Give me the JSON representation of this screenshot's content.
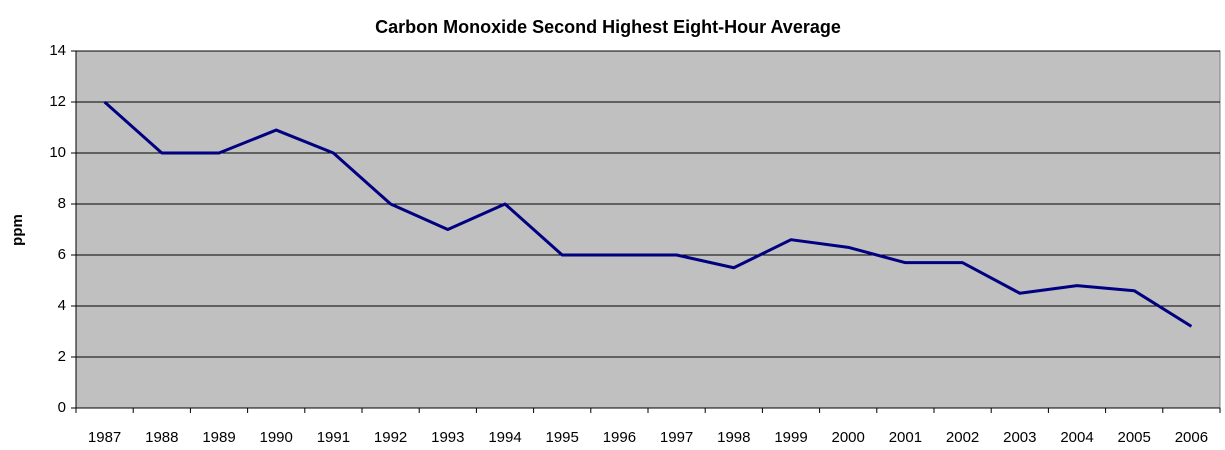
{
  "chart_data": {
    "type": "line",
    "title": "Carbon Monoxide Second Highest Eight-Hour Average",
    "y_label": "ppm",
    "categories": [
      "1987",
      "1988",
      "1989",
      "1990",
      "1991",
      "1992",
      "1993",
      "1994",
      "1995",
      "1996",
      "1997",
      "1998",
      "1999",
      "2000",
      "2001",
      "2002",
      "2003",
      "2004",
      "2005",
      "2006"
    ],
    "values": [
      12,
      10,
      10,
      10.9,
      10,
      8,
      7,
      8,
      6,
      6,
      6,
      5.5,
      6.6,
      6.3,
      5.7,
      5.7,
      4.5,
      4.8,
      4.6,
      3.2
    ],
    "color": "#000080",
    "ylim": [
      0,
      14
    ],
    "yticks": [
      0,
      2,
      4,
      6,
      8,
      10,
      12,
      14
    ],
    "grid": true
  }
}
